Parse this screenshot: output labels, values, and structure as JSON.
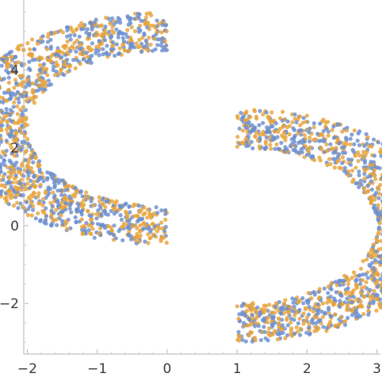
{
  "chart_data": {
    "type": "scatter",
    "title": "",
    "xlabel": "",
    "ylabel": "",
    "xlim": [
      -2.05,
      3.05
    ],
    "ylim": [
      -3.3,
      5.8
    ],
    "grid": false,
    "legend": "none",
    "x_ticks": [
      -2,
      -1,
      0,
      1,
      2,
      3
    ],
    "x_tick_labels": [
      "−2",
      "−1",
      "0",
      "1",
      "2",
      "3"
    ],
    "y_ticks": [
      -2,
      0,
      2,
      4
    ],
    "y_tick_labels": [
      "−2",
      "0",
      "2",
      "4"
    ],
    "colors": {
      "series_blue": "#6b8fcf",
      "series_orange": "#e8a33a",
      "axis": "#b3b3b3",
      "label": "#3c3c3c"
    },
    "series": [
      {
        "shape": "upper half-annulus, open to the right",
        "center": [
          0,
          2.5
        ],
        "inner_radius": 2.0,
        "outer_radius": 3.0,
        "angle_range_deg": [
          90,
          270
        ],
        "point_count": 1500
      },
      {
        "shape": "lower half-annulus, open to the left",
        "center": [
          1,
          0
        ],
        "inner_radius": 2.0,
        "outer_radius": 3.0,
        "angle_range_deg": [
          -90,
          90
        ],
        "point_count": 1500
      }
    ]
  }
}
